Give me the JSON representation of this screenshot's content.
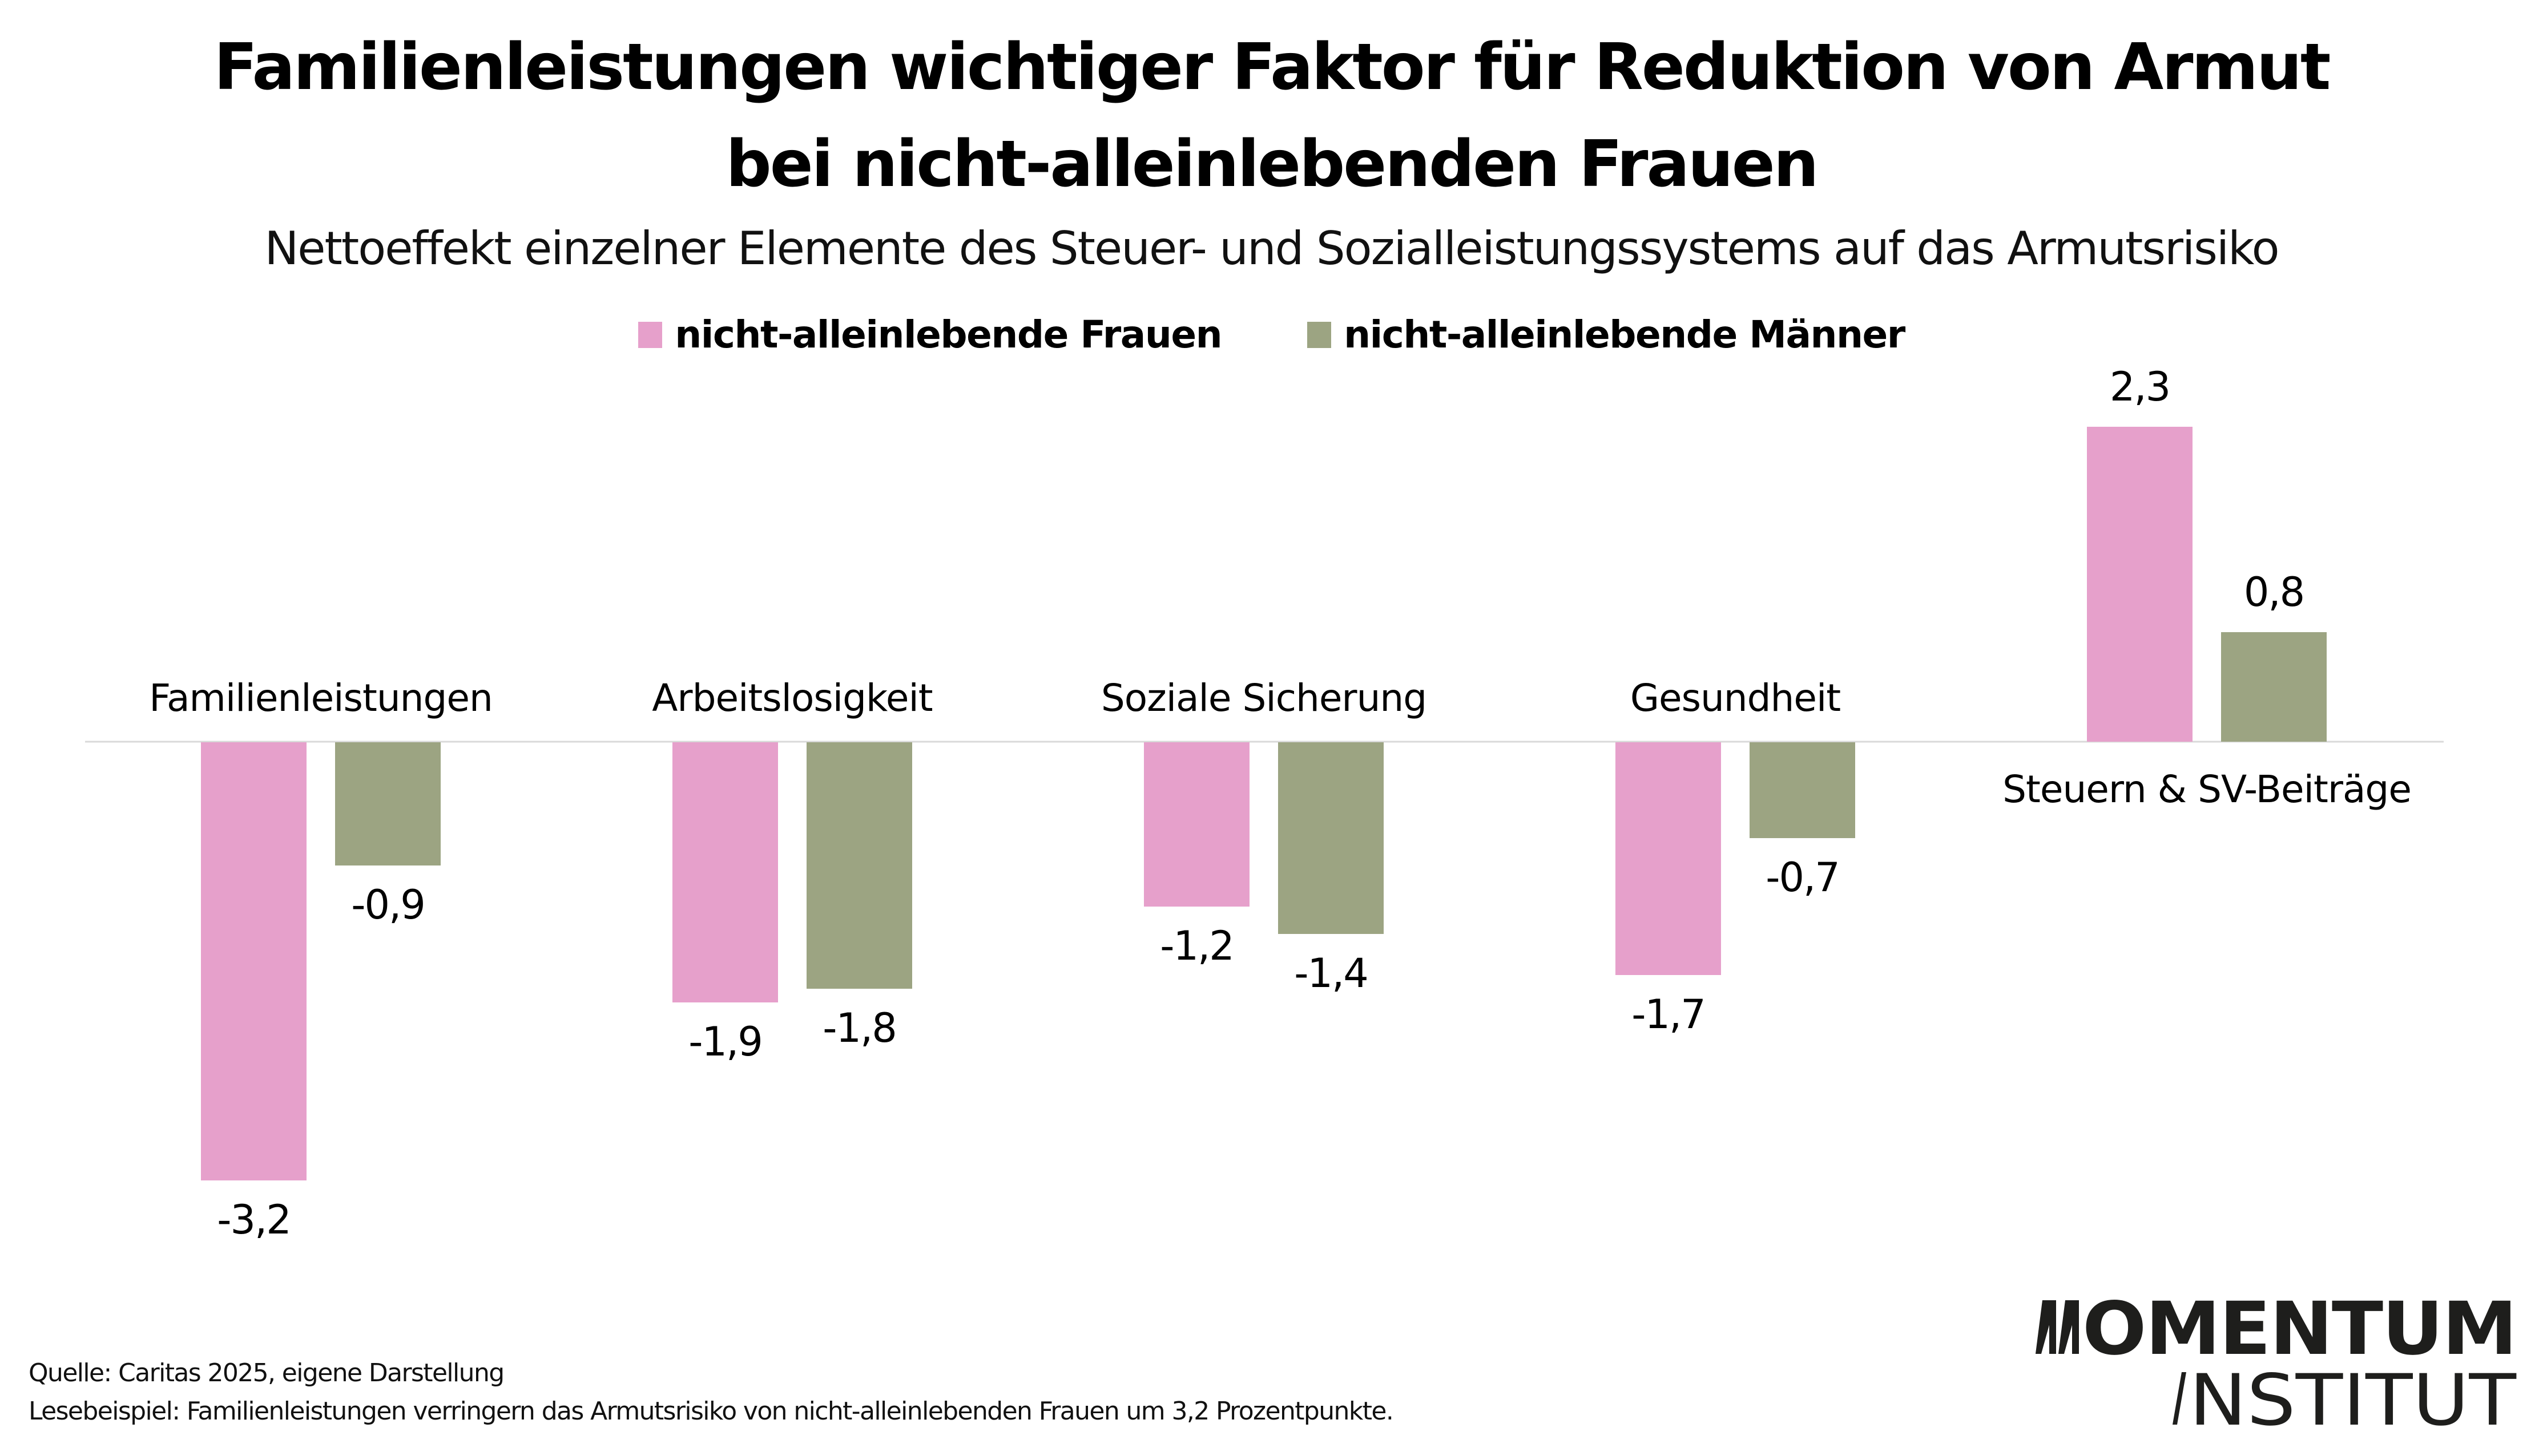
{
  "header": {
    "title_line_1": "Familienleistungen wichtiger Faktor für Reduktion von Armut",
    "title_line_2": "bei nicht-alleinlebenden Frauen",
    "subtitle": "Nettoeffekt einzelner Elemente des Steuer- und Sozialleistungssystems auf das Armutsrisiko"
  },
  "legend": {
    "items": [
      {
        "label": "nicht-alleinlebende Frauen",
        "color": "#e6a0cb"
      },
      {
        "label": "nicht-alleinlebende Männer",
        "color": "#9ca482"
      }
    ]
  },
  "chart_data": {
    "type": "bar",
    "title": "Familienleistungen wichtiger Faktor für Reduktion von Armut bei nicht-alleinlebenden Frauen",
    "subtitle": "Nettoeffekt einzelner Elemente des Steuer- und Sozialleistungssystems auf das Armutsrisiko",
    "xlabel": "",
    "ylabel": "",
    "categories": [
      "Familienleistungen",
      "Arbeitslosigkeit",
      "Soziale Sicherung",
      "Gesundheit",
      "Steuern & SV-Beiträge"
    ],
    "series": [
      {
        "name": "nicht-alleinlebende Frauen",
        "color": "#e6a0cb",
        "values": [
          -3.2,
          -1.9,
          -1.2,
          -1.7,
          2.3
        ],
        "labels": [
          "-3,2",
          "-1,9",
          "-1,2",
          "-1,7",
          "2,3"
        ]
      },
      {
        "name": "nicht-alleinlebende Männer",
        "color": "#9ca482",
        "values": [
          -0.9,
          -1.8,
          -1.4,
          -0.7,
          0.8
        ],
        "labels": [
          "-0,9",
          "-1,8",
          "-1,4",
          "-0,7",
          "0,8"
        ]
      }
    ],
    "ylim": [
      -3.2,
      2.3
    ],
    "grid": false,
    "zero_line": true,
    "zero_line_color": "#d9d9d9",
    "legend_position": "top-center"
  },
  "footer": {
    "source": "Quelle: Caritas 2025, eigene Darstellung",
    "example": "Lesebeispiel: Familienleistungen verringern das Armutsrisiko von nicht-alleinlebenden Frauen um 3,2 Prozentpunkte."
  },
  "logo": {
    "line_1": "OMENTUM",
    "line_2": "NSTITUT",
    "full_name": "MOMENTUM INSTITUT",
    "color": "#1e1e1c"
  }
}
